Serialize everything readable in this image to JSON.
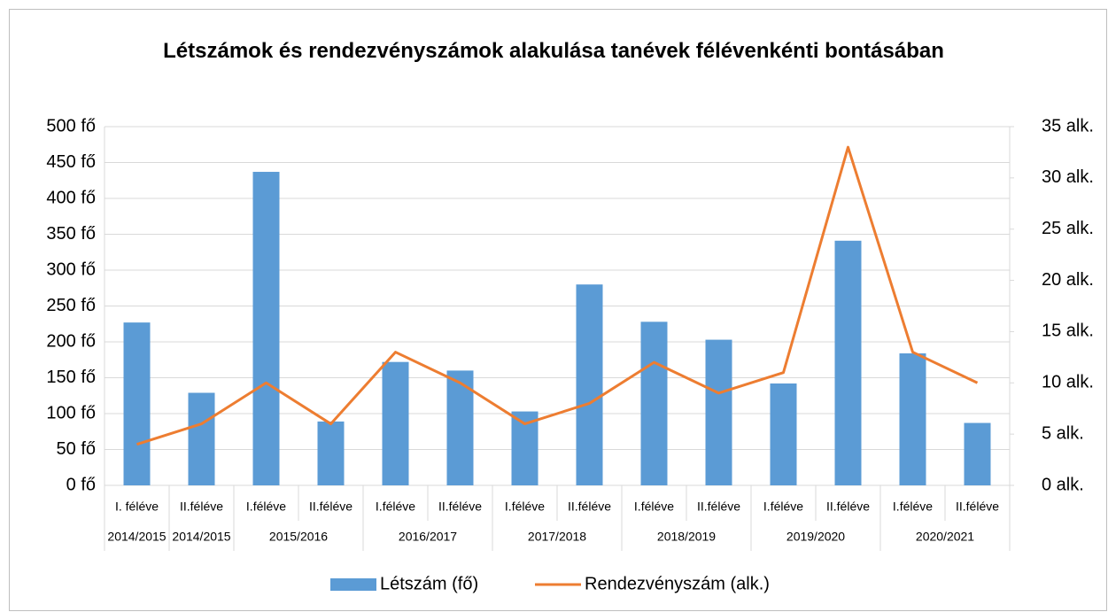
{
  "chart_data": {
    "type": "bar_line",
    "title": "Létszámok és rendezvényszámok alakulása tanévek félévenkénti bontásában",
    "categories": [
      "I. féléve",
      "II.féléve",
      "I.féléve",
      "II.féléve",
      "I.féléve",
      "II.féléve",
      "I.féléve",
      "II.féléve",
      "I.féléve",
      "II.féléve",
      "I.féléve",
      "II.féléve",
      "I.féléve",
      "II.féléve"
    ],
    "groups": [
      {
        "label": "2014/2015",
        "count": 1
      },
      {
        "label": "2014/2015",
        "count": 1
      },
      {
        "label": "2015/2016",
        "count": 2
      },
      {
        "label": "2016/2017",
        "count": 2
      },
      {
        "label": "2017/2018",
        "count": 2
      },
      {
        "label": "2018/2019",
        "count": 2
      },
      {
        "label": "2019/2020",
        "count": 2
      },
      {
        "label": "2020/2021",
        "count": 2
      }
    ],
    "series": [
      {
        "name": "Létszám (fő)",
        "type": "bar",
        "color": "#5b9bd5",
        "values": [
          227,
          129,
          437,
          89,
          172,
          160,
          103,
          280,
          228,
          203,
          142,
          341,
          184,
          87
        ]
      },
      {
        "name": "Rendezvényszám (alk.)",
        "type": "line",
        "axis": "y2",
        "color": "#ed7d31",
        "values": [
          4,
          6,
          10,
          6,
          13,
          10,
          6,
          8,
          12,
          9,
          11,
          33,
          13,
          10
        ]
      }
    ],
    "ylim": [
      0,
      500
    ],
    "yticks": [
      {
        "value": 0,
        "label": "0 fő"
      },
      {
        "value": 50,
        "label": "50 fő"
      },
      {
        "value": 100,
        "label": "100 fő"
      },
      {
        "value": 150,
        "label": "150 fő"
      },
      {
        "value": 200,
        "label": "200 fő"
      },
      {
        "value": 250,
        "label": "250 fő"
      },
      {
        "value": 300,
        "label": "300 fő"
      },
      {
        "value": 350,
        "label": "350 fő"
      },
      {
        "value": 400,
        "label": "400 fő"
      },
      {
        "value": 450,
        "label": "450 fő"
      },
      {
        "value": 500,
        "label": "500 fő"
      }
    ],
    "y2lim": [
      0,
      35
    ],
    "y2ticks": [
      {
        "value": 0,
        "label": "0 alk."
      },
      {
        "value": 5,
        "label": "5 alk."
      },
      {
        "value": 10,
        "label": "10 alk."
      },
      {
        "value": 15,
        "label": "15 alk."
      },
      {
        "value": 20,
        "label": "20 alk."
      },
      {
        "value": 25,
        "label": "25 alk."
      },
      {
        "value": 30,
        "label": "30 alk."
      },
      {
        "value": 35,
        "label": "35 alk."
      }
    ],
    "grid": true,
    "legend": "bottom"
  }
}
